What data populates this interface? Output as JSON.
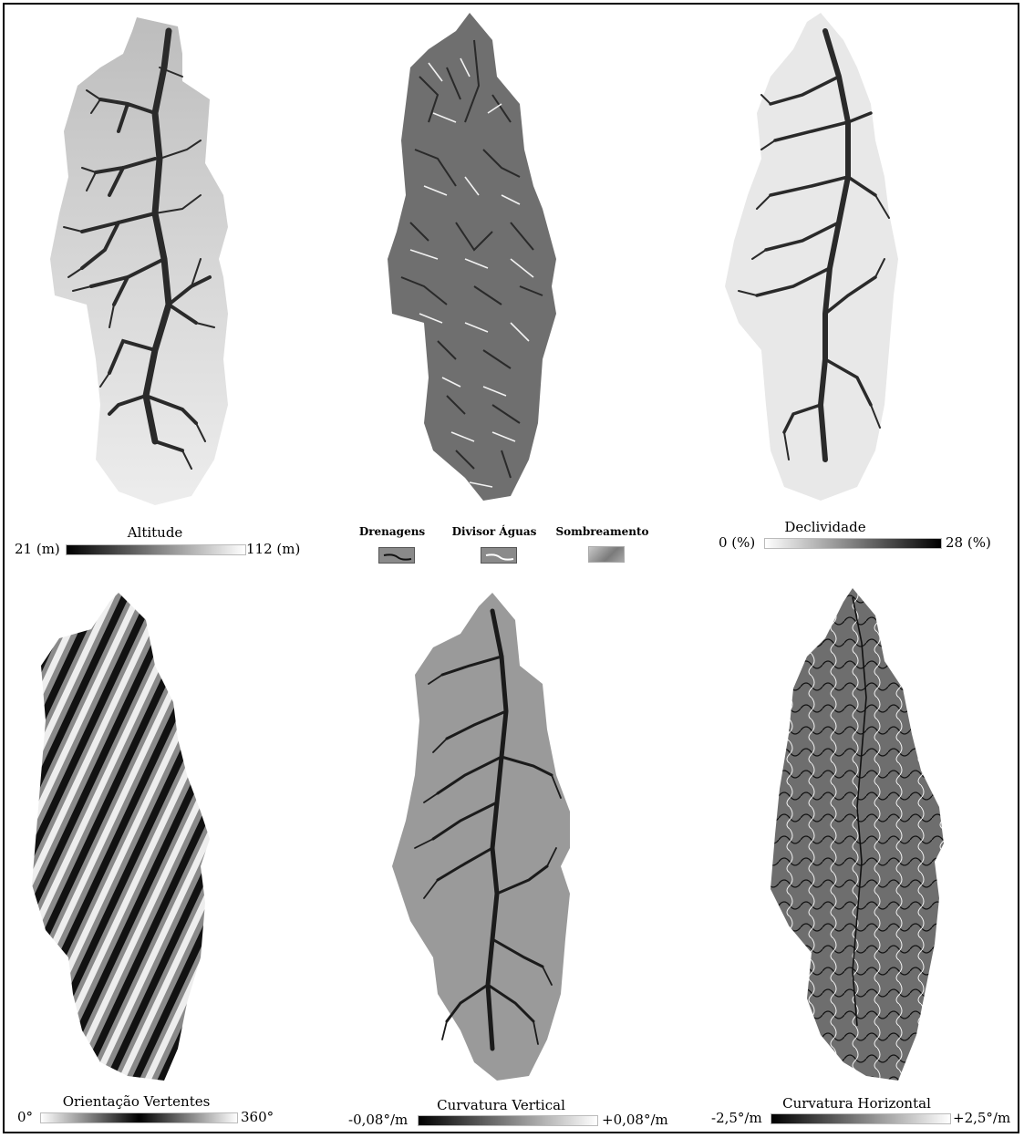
{
  "panels": {
    "altitude": {
      "title": "Altitude",
      "min_label": "21 (m)",
      "max_label": "112 (m)",
      "ramp": [
        "#000000",
        "#ffffff"
      ]
    },
    "composite": {
      "items": [
        {
          "label": "Drenagens",
          "icon": "dark-drainage-line-swatch"
        },
        {
          "label": "Divisor Águas",
          "icon": "white-divide-line-swatch"
        },
        {
          "label": "Sombreamento",
          "icon": "hillshade-swatch"
        }
      ]
    },
    "slope": {
      "title": "Declividade",
      "min_label": "0 (%)",
      "max_label": "28 (%)",
      "ramp": [
        "#ffffff",
        "#000000"
      ]
    },
    "aspect": {
      "title": "Orientação Vertentes",
      "min_label": "0°",
      "max_label": "360°",
      "ramp": [
        "#ffffff",
        "#000000",
        "#ffffff"
      ]
    },
    "profile_curvature": {
      "title": "Curvatura Vertical",
      "min_label": "-0,08°/m",
      "max_label": "+0,08°/m",
      "ramp": [
        "#000000",
        "#ffffff"
      ]
    },
    "plan_curvature": {
      "title": "Curvatura Horizontal",
      "min_label": "-2,5°/m",
      "max_label": "+2,5°/m",
      "ramp": [
        "#000000",
        "#ffffff"
      ]
    }
  },
  "colors": {
    "frame": "#000000",
    "basin_light": "#d8d8d8",
    "basin_mid": "#7a7a7a",
    "drainage": "#1a1a1a"
  }
}
